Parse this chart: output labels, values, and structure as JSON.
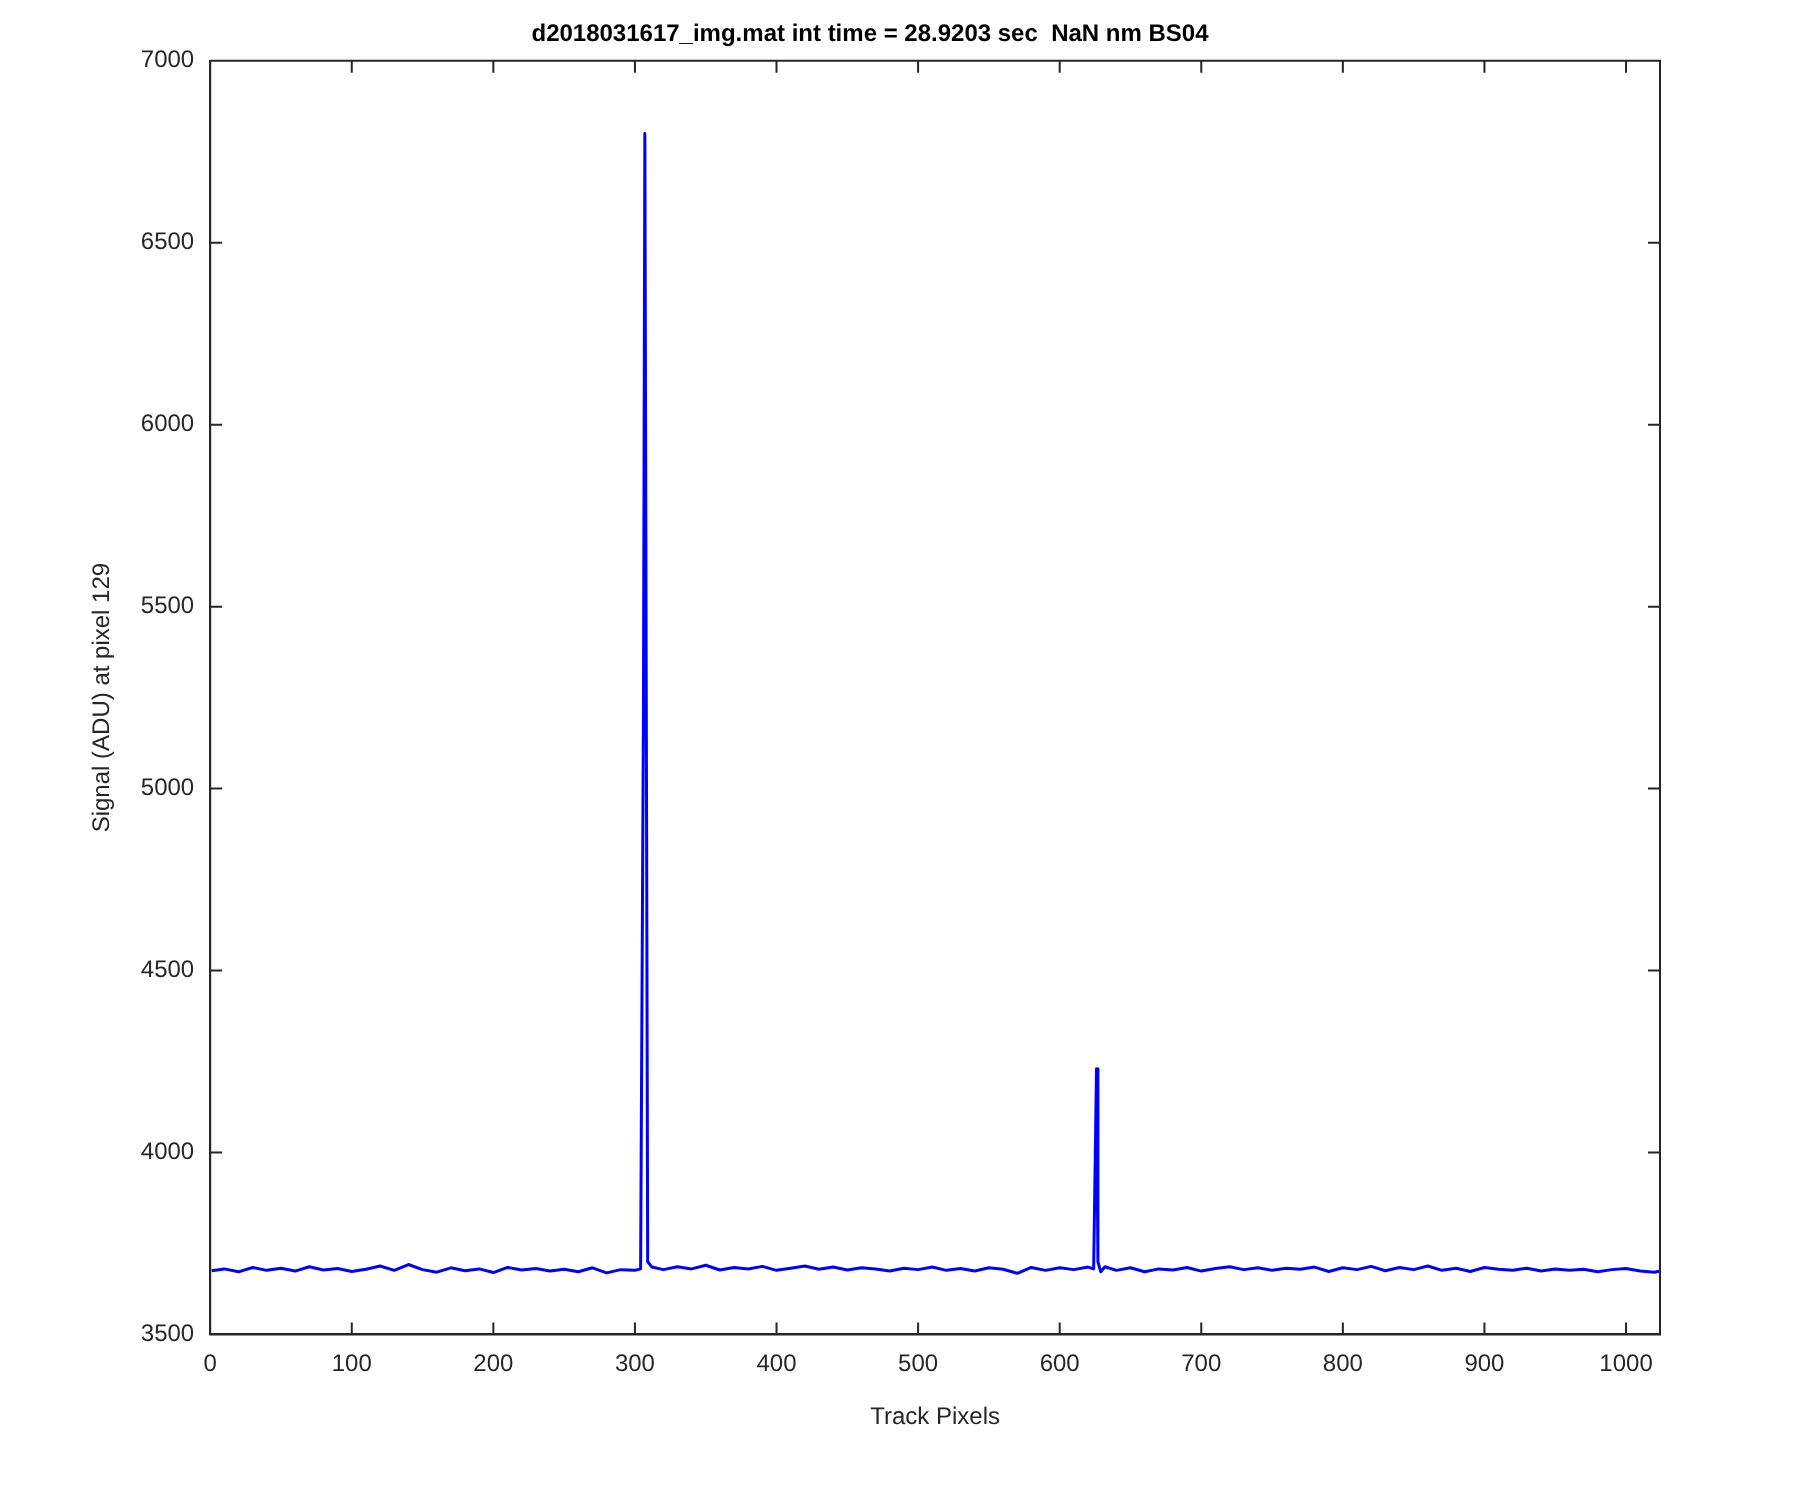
{
  "chart_data": {
    "type": "line",
    "title": "d2018031617_img.mat int time = 28.9203 sec  NaN nm BS04",
    "xlabel": "Track Pixels",
    "ylabel": "Signal (ADU) at pixel 129",
    "x": [
      1,
      10,
      20,
      30,
      40,
      50,
      60,
      70,
      80,
      90,
      100,
      110,
      120,
      130,
      140,
      150,
      160,
      170,
      180,
      190,
      200,
      210,
      220,
      230,
      240,
      250,
      260,
      270,
      280,
      290,
      300,
      304,
      306,
      307,
      309,
      312,
      320,
      330,
      340,
      350,
      360,
      370,
      380,
      390,
      400,
      410,
      420,
      430,
      440,
      450,
      460,
      470,
      480,
      490,
      500,
      510,
      520,
      530,
      540,
      550,
      560,
      570,
      580,
      590,
      600,
      610,
      620,
      624,
      626,
      627,
      629,
      632,
      640,
      650,
      660,
      670,
      680,
      690,
      700,
      710,
      720,
      730,
      740,
      750,
      760,
      770,
      780,
      790,
      800,
      810,
      820,
      830,
      840,
      850,
      860,
      870,
      880,
      890,
      900,
      910,
      920,
      930,
      940,
      950,
      960,
      970,
      980,
      990,
      1000,
      1010,
      1020,
      1024
    ],
    "series": [
      {
        "color": "#0000ff",
        "values": [
          3675,
          3680,
          3672,
          3684,
          3676,
          3682,
          3674,
          3686,
          3677,
          3681,
          3673,
          3679,
          3688,
          3676,
          3692,
          3678,
          3671,
          3683,
          3675,
          3680,
          3670,
          3684,
          3677,
          3681,
          3674,
          3679,
          3672,
          3683,
          3669,
          3678,
          3676,
          3680,
          5200,
          6800,
          3700,
          3685,
          3678,
          3686,
          3680,
          3690,
          3677,
          3684,
          3680,
          3687,
          3676,
          3682,
          3688,
          3679,
          3685,
          3677,
          3683,
          3680,
          3674,
          3682,
          3678,
          3685,
          3676,
          3681,
          3674,
          3683,
          3679,
          3668,
          3684,
          3676,
          3683,
          3678,
          3685,
          3680,
          4230,
          3700,
          3672,
          3686,
          3676,
          3683,
          3672,
          3680,
          3677,
          3684,
          3674,
          3681,
          3686,
          3678,
          3683,
          3676,
          3682,
          3679,
          3685,
          3673,
          3683,
          3678,
          3687,
          3675,
          3684,
          3678,
          3688,
          3676,
          3682,
          3673,
          3684,
          3679,
          3676,
          3682,
          3674,
          3680,
          3676,
          3679,
          3672,
          3678,
          3681,
          3674,
          3671,
          3674
        ]
      }
    ],
    "xlim": [
      0,
      1024
    ],
    "ylim": [
      3500,
      7000
    ],
    "xticks": [
      0,
      100,
      200,
      300,
      400,
      500,
      600,
      700,
      800,
      900,
      1000
    ],
    "yticks": [
      3500,
      4000,
      4500,
      5000,
      5500,
      6000,
      6500,
      7000
    ],
    "grid": false,
    "legend": false
  }
}
